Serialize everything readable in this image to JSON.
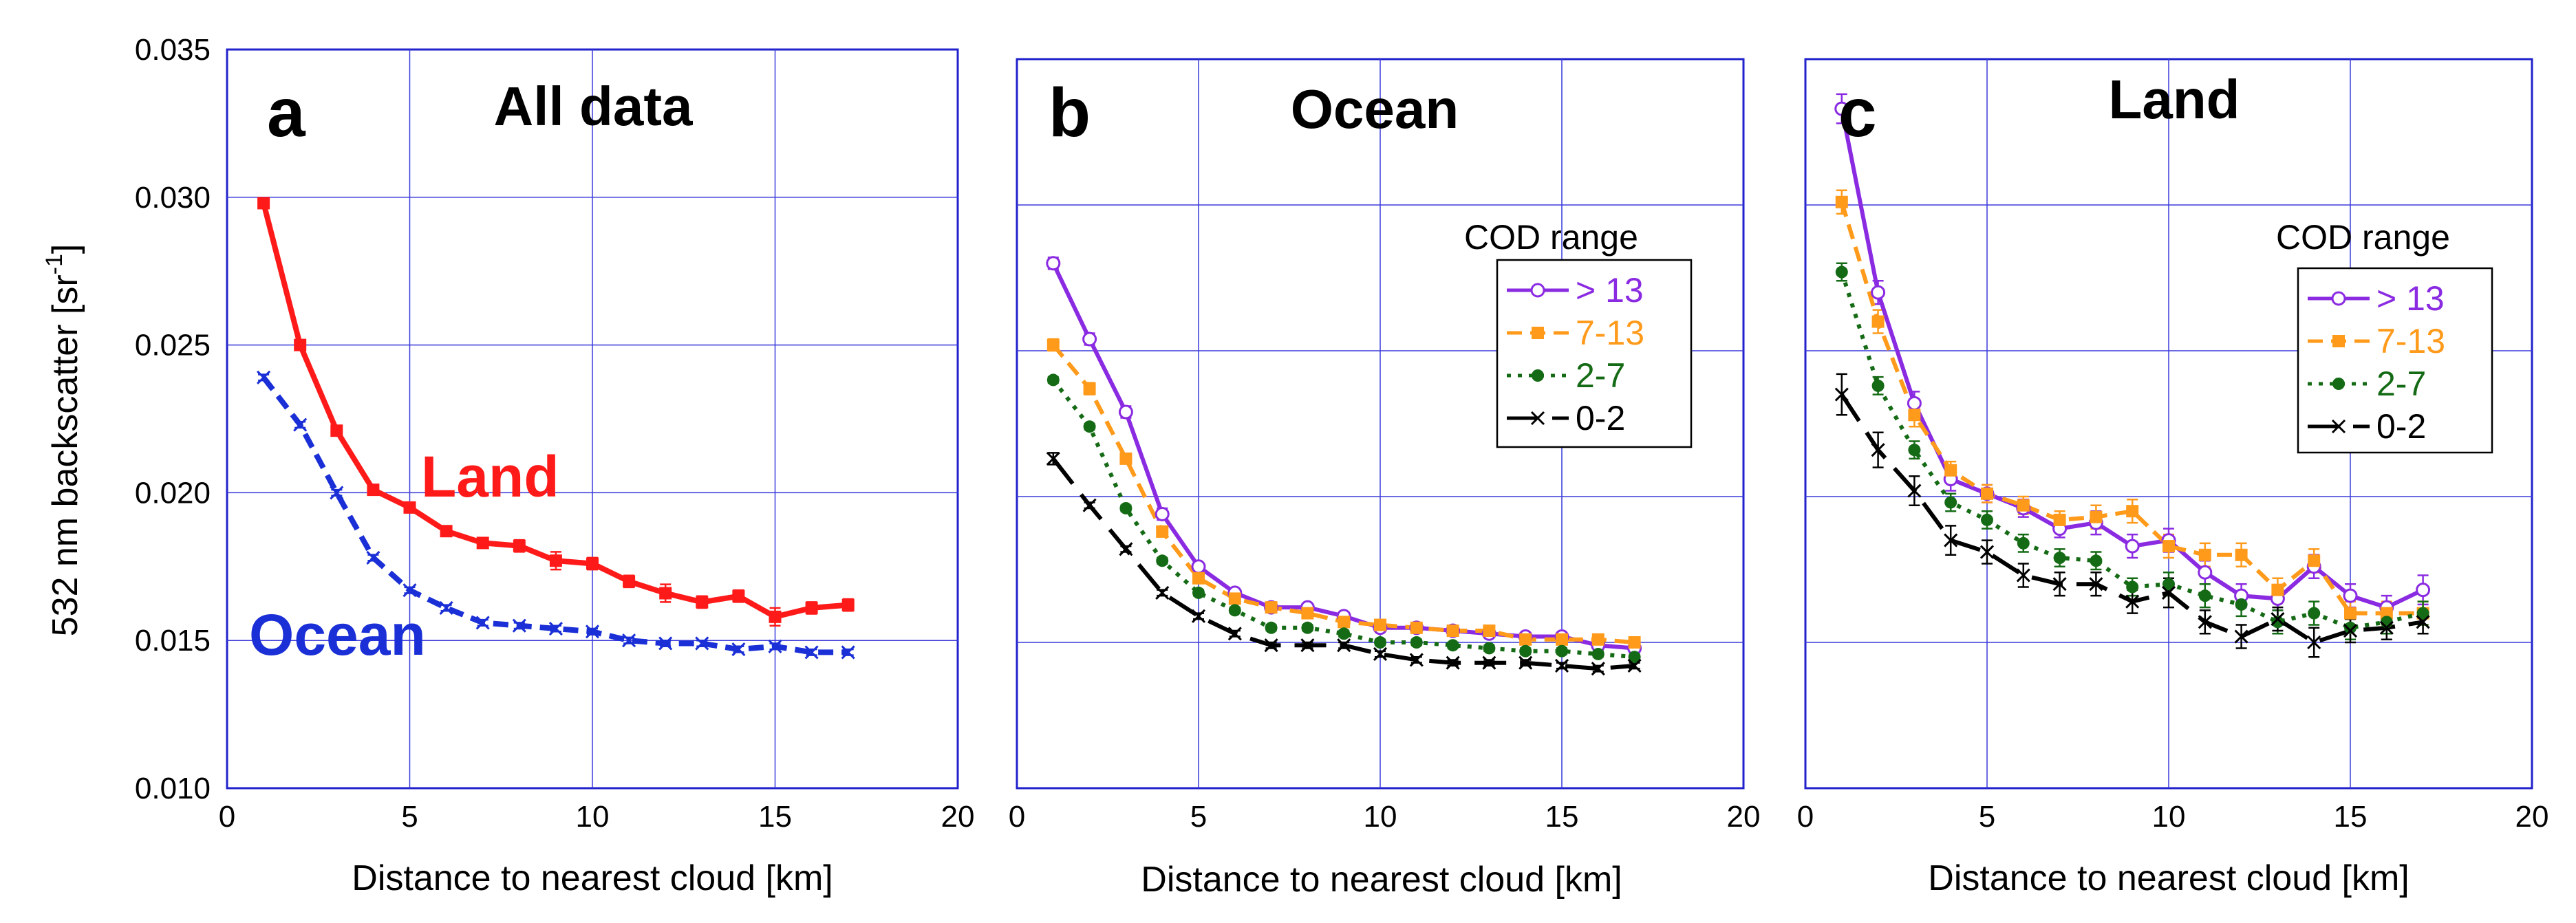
{
  "chart_data": [
    {
      "type": "line",
      "panel": "a",
      "title": "All data",
      "xlabel": "Distance to nearest cloud [km]",
      "ylabel": "532 nm backscatter [sr⁻¹]",
      "xlim": [
        0,
        20
      ],
      "ylim": [
        0.01,
        0.035
      ],
      "xticks": [
        "0",
        "5",
        "10",
        "15",
        "20"
      ],
      "yticks": [
        "0.010",
        "0.015",
        "0.020",
        "0.025",
        "0.030",
        "0.035"
      ],
      "grid": true,
      "series": [
        {
          "name": "Land",
          "color": "#ff1a1a",
          "dash": "solid",
          "marker": "square",
          "label_inline": true,
          "x": [
            1,
            2,
            3,
            4,
            5,
            6,
            7,
            8,
            9,
            10,
            11,
            12,
            13,
            14,
            15,
            16,
            17
          ],
          "y": [
            0.0298,
            0.025,
            0.0221,
            0.0201,
            0.0195,
            0.0187,
            0.0183,
            0.0182,
            0.0177,
            0.0176,
            0.017,
            0.0166,
            0.0163,
            0.0165,
            0.0158,
            0.0161,
            0.0162
          ],
          "err": [
            0.0001,
            0.0001,
            0.0001,
            0.0001,
            0.0001,
            0.0001,
            0.0001,
            0.0002,
            0.0003,
            0.0002,
            0.0002,
            0.0003,
            0.0002,
            0.0002,
            0.0003,
            0.0002,
            0.0002
          ]
        },
        {
          "name": "Ocean",
          "color": "#1a2fd6",
          "dash": "dash",
          "marker": "x",
          "label_inline": true,
          "x": [
            1,
            2,
            3,
            4,
            5,
            6,
            7,
            8,
            9,
            10,
            11,
            12,
            13,
            14,
            15,
            16,
            17
          ],
          "y": [
            0.0239,
            0.0223,
            0.02,
            0.0178,
            0.0167,
            0.0161,
            0.0156,
            0.0155,
            0.0154,
            0.0153,
            0.015,
            0.0149,
            0.0149,
            0.0147,
            0.0148,
            0.0146,
            0.0146
          ],
          "err": [
            0.0001,
            0.0001,
            0.0001,
            0.0001,
            0.0001,
            0.0001,
            0.0001,
            0.0001,
            0.0001,
            0.0001,
            0.0001,
            0.0001,
            0.0001,
            0.0001,
            0.0001,
            0.0001,
            0.0001
          ]
        }
      ]
    },
    {
      "type": "line",
      "panel": "b",
      "title": "Ocean",
      "xlabel": "Distance to nearest cloud [km]",
      "ylabel": "",
      "xlim": [
        0,
        20
      ],
      "ylim": [
        0.01,
        0.035
      ],
      "xticks": [
        "0",
        "5",
        "10",
        "15",
        "20"
      ],
      "yticks": [],
      "grid": true,
      "legend_title": "COD range",
      "legend_position": "top-right",
      "series": [
        {
          "name": "> 13",
          "color": "#8a2be2",
          "dash": "solid",
          "marker": "circle-open",
          "x": [
            1,
            2,
            3,
            4,
            5,
            6,
            7,
            8,
            9,
            10,
            11,
            12,
            13,
            14,
            15,
            16,
            17
          ],
          "y": [
            0.028,
            0.0254,
            0.0229,
            0.0194,
            0.0176,
            0.0167,
            0.0162,
            0.0162,
            0.0159,
            0.0155,
            0.0155,
            0.0154,
            0.0153,
            0.0152,
            0.0152,
            0.0149,
            0.0148
          ],
          "err": [
            0.0002,
            0.0002,
            0.0002,
            0.0002,
            0.0001,
            0.0001,
            0.0001,
            0.0001,
            0.0001,
            0.0001,
            0.0001,
            0.0001,
            0.0001,
            0.0001,
            0.0001,
            0.0001,
            0.0001
          ]
        },
        {
          "name": "7-13",
          "color": "#ff9a1a",
          "dash": "dash",
          "marker": "square",
          "x": [
            1,
            2,
            3,
            4,
            5,
            6,
            7,
            8,
            9,
            10,
            11,
            12,
            13,
            14,
            15,
            16,
            17
          ],
          "y": [
            0.0252,
            0.0237,
            0.0213,
            0.0188,
            0.0172,
            0.0165,
            0.0162,
            0.016,
            0.0157,
            0.0156,
            0.0155,
            0.0154,
            0.0154,
            0.0151,
            0.0151,
            0.0151,
            0.015
          ],
          "err": [
            0.0002,
            0.0002,
            0.0001,
            0.0001,
            0.0001,
            0.0001,
            0.0001,
            0.0001,
            0.0001,
            0.0001,
            0.0001,
            0.0001,
            0.0001,
            0.0001,
            0.0001,
            0.0001,
            0.0001
          ]
        },
        {
          "name": "2-7",
          "color": "#156b15",
          "dash": "dot",
          "marker": "circle",
          "x": [
            1,
            2,
            3,
            4,
            5,
            6,
            7,
            8,
            9,
            10,
            11,
            12,
            13,
            14,
            15,
            16,
            17
          ],
          "y": [
            0.024,
            0.0224,
            0.0196,
            0.0178,
            0.0167,
            0.0161,
            0.0155,
            0.0155,
            0.0153,
            0.015,
            0.015,
            0.0149,
            0.0148,
            0.0147,
            0.0147,
            0.0146,
            0.0145
          ],
          "err": [
            0.0001,
            0.0001,
            0.0001,
            0.0001,
            0.0001,
            0.0001,
            0.0001,
            0.0001,
            0.0001,
            0.0001,
            0.0001,
            0.0001,
            0.0001,
            0.0001,
            0.0001,
            0.0001,
            0.0001
          ]
        },
        {
          "name": "0-2",
          "color": "#000000",
          "dash": "longdash",
          "marker": "x",
          "x": [
            1,
            2,
            3,
            4,
            5,
            6,
            7,
            8,
            9,
            10,
            11,
            12,
            13,
            14,
            15,
            16,
            17
          ],
          "y": [
            0.0213,
            0.0197,
            0.0182,
            0.0167,
            0.0159,
            0.0153,
            0.0149,
            0.0149,
            0.0149,
            0.0146,
            0.0144,
            0.0143,
            0.0143,
            0.0143,
            0.0142,
            0.0141,
            0.0142
          ],
          "err": [
            0.0002,
            0.0001,
            0.0001,
            0.0001,
            0.0001,
            0.0001,
            0.0001,
            0.0001,
            0.0001,
            0.0001,
            0.0001,
            0.0001,
            0.0001,
            0.0001,
            0.0001,
            0.0001,
            0.0001
          ]
        }
      ]
    },
    {
      "type": "line",
      "panel": "c",
      "title": "Land",
      "xlabel": "Distance to nearest cloud [km]",
      "ylabel": "",
      "xlim": [
        0,
        20
      ],
      "ylim": [
        0.01,
        0.035
      ],
      "xticks": [
        "0",
        "5",
        "10",
        "15",
        "20"
      ],
      "yticks": [],
      "grid": true,
      "legend_title": "COD range",
      "legend_position": "top-right",
      "series": [
        {
          "name": "> 13",
          "color": "#8a2be2",
          "dash": "solid",
          "marker": "circle-open",
          "x": [
            1,
            2,
            3,
            4,
            5,
            6,
            7,
            8,
            9,
            10,
            11,
            12,
            13,
            14,
            15,
            16,
            17
          ],
          "y": [
            0.0333,
            0.027,
            0.0232,
            0.0206,
            0.0201,
            0.0196,
            0.0189,
            0.0191,
            0.0183,
            0.0185,
            0.0174,
            0.0166,
            0.0165,
            0.0176,
            0.0166,
            0.0162,
            0.0168
          ],
          "err": [
            0.0005,
            0.0004,
            0.0004,
            0.0004,
            0.0003,
            0.0003,
            0.0003,
            0.0004,
            0.0004,
            0.0004,
            0.0004,
            0.0004,
            0.0004,
            0.0004,
            0.0004,
            0.0004,
            0.0005
          ]
        },
        {
          "name": "7-13",
          "color": "#ff9a1a",
          "dash": "dash",
          "marker": "square",
          "x": [
            1,
            2,
            3,
            4,
            5,
            6,
            7,
            8,
            9,
            10,
            11,
            12,
            13,
            14,
            15,
            16,
            17
          ],
          "y": [
            0.0301,
            0.026,
            0.0228,
            0.0209,
            0.0201,
            0.0197,
            0.0192,
            0.0193,
            0.0195,
            0.0183,
            0.018,
            0.018,
            0.0168,
            0.0178,
            0.016,
            0.016,
            0.016
          ],
          "err": [
            0.0004,
            0.0004,
            0.0004,
            0.0003,
            0.0003,
            0.0003,
            0.0003,
            0.0004,
            0.0004,
            0.0004,
            0.0004,
            0.0004,
            0.0004,
            0.0004,
            0.0004,
            0.0004,
            0.0004
          ]
        },
        {
          "name": "2-7",
          "color": "#156b15",
          "dash": "dot",
          "marker": "circle",
          "x": [
            1,
            2,
            3,
            4,
            5,
            6,
            7,
            8,
            9,
            10,
            11,
            12,
            13,
            14,
            15,
            16,
            17
          ],
          "y": [
            0.0277,
            0.0238,
            0.0216,
            0.0198,
            0.0192,
            0.0184,
            0.0179,
            0.0178,
            0.0169,
            0.017,
            0.0166,
            0.0163,
            0.0157,
            0.016,
            0.0155,
            0.0157,
            0.016
          ],
          "err": [
            0.0003,
            0.0003,
            0.0003,
            0.0003,
            0.0003,
            0.0003,
            0.0003,
            0.0003,
            0.0003,
            0.0004,
            0.0004,
            0.0004,
            0.0004,
            0.0004,
            0.0004,
            0.0004,
            0.0004
          ]
        },
        {
          "name": "0-2",
          "color": "#000000",
          "dash": "longdash",
          "marker": "x",
          "x": [
            1,
            2,
            3,
            4,
            5,
            6,
            7,
            8,
            9,
            10,
            11,
            12,
            13,
            14,
            15,
            16,
            17
          ],
          "y": [
            0.0235,
            0.0216,
            0.0202,
            0.0185,
            0.0181,
            0.0173,
            0.017,
            0.017,
            0.0164,
            0.0167,
            0.0157,
            0.0152,
            0.0158,
            0.015,
            0.0154,
            0.0155,
            0.0157
          ],
          "err": [
            0.0007,
            0.0006,
            0.0005,
            0.0005,
            0.0004,
            0.0004,
            0.0004,
            0.0004,
            0.0004,
            0.0005,
            0.0004,
            0.0004,
            0.0004,
            0.0005,
            0.0004,
            0.0004,
            0.0004
          ]
        }
      ]
    }
  ]
}
